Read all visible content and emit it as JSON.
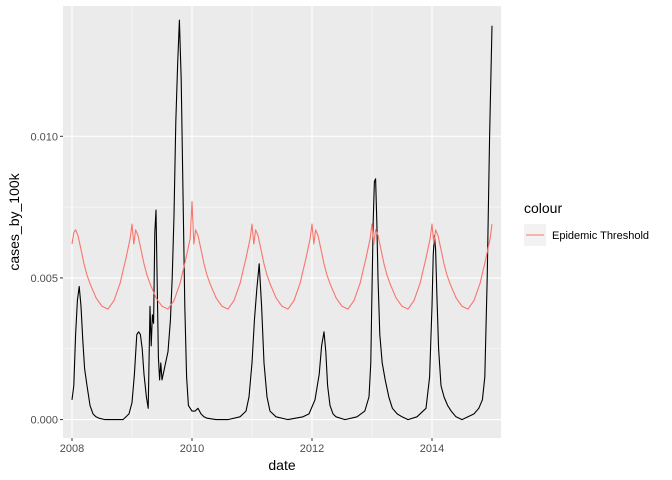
{
  "chart_data": {
    "type": "line",
    "xlabel": "date",
    "ylabel": "cases_by_100k",
    "xlim": [
      2007.85,
      2015.15
    ],
    "ylim": [
      -0.00065,
      0.0146
    ],
    "xticks": [
      2008,
      2010,
      2012,
      2014
    ],
    "xtick_labels": [
      "2008",
      "2010",
      "2012",
      "2014"
    ],
    "yticks": [
      0.0,
      0.005,
      0.01
    ],
    "ytick_labels": [
      "0.000",
      "0.005",
      "0.010"
    ],
    "grid": true,
    "legend": {
      "title": "colour",
      "position": "right",
      "entries": [
        {
          "label": "Epidemic Threshold",
          "color": "#F8766D"
        }
      ]
    },
    "colors": {
      "panel": "#EBEBEB",
      "grid_major": "#FFFFFF",
      "cases": "#000000",
      "threshold": "#F8766D"
    },
    "series": [
      {
        "key": "cases",
        "x": [
          2008.0,
          2008.03,
          2008.06,
          2008.09,
          2008.12,
          2008.15,
          2008.18,
          2008.21,
          2008.25,
          2008.3,
          2008.35,
          2008.4,
          2008.45,
          2008.55,
          2008.7,
          2008.85,
          2008.95,
          2009.0,
          2009.04,
          2009.08,
          2009.11,
          2009.14,
          2009.17,
          2009.2,
          2009.24,
          2009.27,
          2009.3,
          2009.32,
          2009.34,
          2009.36,
          2009.38,
          2009.4,
          2009.42,
          2009.44,
          2009.46,
          2009.48,
          2009.5,
          2009.53,
          2009.56,
          2009.6,
          2009.64,
          2009.67,
          2009.7,
          2009.73,
          2009.76,
          2009.79,
          2009.82,
          2009.85,
          2009.88,
          2009.91,
          2009.94,
          2009.97,
          2010.0,
          2010.05,
          2010.1,
          2010.15,
          2010.2,
          2010.25,
          2010.4,
          2010.6,
          2010.8,
          2010.9,
          2010.95,
          2011.0,
          2011.04,
          2011.08,
          2011.12,
          2011.16,
          2011.2,
          2011.25,
          2011.3,
          2011.4,
          2011.6,
          2011.85,
          2011.95,
          2012.05,
          2012.12,
          2012.16,
          2012.2,
          2012.23,
          2012.26,
          2012.3,
          2012.35,
          2012.4,
          2012.55,
          2012.75,
          2012.88,
          2012.95,
          2012.98,
          2013.0,
          2013.02,
          2013.04,
          2013.06,
          2013.08,
          2013.1,
          2013.13,
          2013.17,
          2013.22,
          2013.28,
          2013.34,
          2013.42,
          2013.5,
          2013.6,
          2013.75,
          2013.9,
          2013.96,
          2014.0,
          2014.02,
          2014.04,
          2014.06,
          2014.08,
          2014.11,
          2014.15,
          2014.2,
          2014.26,
          2014.32,
          2014.4,
          2014.5,
          2014.6,
          2014.7,
          2014.78,
          2014.84,
          2014.88,
          2014.92,
          2014.96,
          2015.0
        ],
        "y": [
          0.0007,
          0.0012,
          0.003,
          0.0042,
          0.0047,
          0.004,
          0.0028,
          0.0018,
          0.0012,
          0.0005,
          0.0002,
          0.0001,
          5e-05,
          0.0,
          0.0,
          0.0,
          0.0002,
          0.0006,
          0.0016,
          0.003,
          0.0031,
          0.003,
          0.0025,
          0.0016,
          0.0008,
          0.0004,
          0.004,
          0.0026,
          0.0037,
          0.0034,
          0.0066,
          0.0074,
          0.0048,
          0.0022,
          0.0014,
          0.002,
          0.0014,
          0.0017,
          0.002,
          0.0024,
          0.0035,
          0.005,
          0.0072,
          0.0105,
          0.0125,
          0.0141,
          0.012,
          0.008,
          0.004,
          0.0015,
          0.0005,
          0.0004,
          0.0003,
          0.0003,
          0.0004,
          0.0002,
          0.0001,
          5e-05,
          0.0,
          0.0,
          0.0001,
          0.0003,
          0.0008,
          0.002,
          0.0035,
          0.0046,
          0.0055,
          0.004,
          0.002,
          0.0008,
          0.0003,
          0.0001,
          0.0,
          0.0001,
          0.0002,
          0.0007,
          0.0016,
          0.0026,
          0.0031,
          0.0024,
          0.0012,
          0.0005,
          0.0002,
          0.0001,
          0.0,
          0.0001,
          0.0003,
          0.0008,
          0.002,
          0.0046,
          0.007,
          0.0084,
          0.0085,
          0.007,
          0.005,
          0.003,
          0.002,
          0.0014,
          0.0008,
          0.0004,
          0.0002,
          0.0001,
          0.0,
          0.0001,
          0.0004,
          0.0015,
          0.004,
          0.0058,
          0.0065,
          0.006,
          0.0045,
          0.0025,
          0.0012,
          0.0008,
          0.0005,
          0.0003,
          0.0001,
          0.0,
          0.0001,
          0.0002,
          0.0004,
          0.0007,
          0.0015,
          0.005,
          0.01,
          0.0139
        ]
      },
      {
        "key": "threshold",
        "name": "Epidemic Threshold",
        "x": [
          2008.0,
          2008.03,
          2008.06,
          2008.1,
          2008.15,
          2008.2,
          2008.25,
          2008.3,
          2008.4,
          2008.5,
          2008.6,
          2008.7,
          2008.8,
          2008.9,
          2008.97,
          2009.0,
          2009.03,
          2009.06,
          2009.1,
          2009.15,
          2009.2,
          2009.25,
          2009.3,
          2009.4,
          2009.5,
          2009.6,
          2009.7,
          2009.8,
          2009.9,
          2009.97,
          2010.0,
          2010.03,
          2010.06,
          2010.1,
          2010.15,
          2010.2,
          2010.25,
          2010.3,
          2010.4,
          2010.5,
          2010.6,
          2010.7,
          2010.8,
          2010.9,
          2010.97,
          2011.0,
          2011.03,
          2011.06,
          2011.1,
          2011.15,
          2011.2,
          2011.25,
          2011.3,
          2011.4,
          2011.5,
          2011.6,
          2011.7,
          2011.8,
          2011.9,
          2011.97,
          2012.0,
          2012.03,
          2012.06,
          2012.1,
          2012.15,
          2012.2,
          2012.25,
          2012.3,
          2012.4,
          2012.5,
          2012.6,
          2012.7,
          2012.8,
          2012.9,
          2012.97,
          2013.0,
          2013.03,
          2013.06,
          2013.1,
          2013.15,
          2013.2,
          2013.25,
          2013.3,
          2013.4,
          2013.5,
          2013.6,
          2013.7,
          2013.8,
          2013.9,
          2013.97,
          2014.0,
          2014.03,
          2014.06,
          2014.1,
          2014.15,
          2014.2,
          2014.25,
          2014.3,
          2014.4,
          2014.5,
          2014.6,
          2014.7,
          2014.8,
          2014.9,
          2014.97,
          2015.0
        ],
        "y": [
          0.0062,
          0.0066,
          0.0067,
          0.0065,
          0.006,
          0.0055,
          0.0051,
          0.0048,
          0.0043,
          0.004,
          0.0039,
          0.0042,
          0.0048,
          0.0057,
          0.0064,
          0.0069,
          0.0062,
          0.0067,
          0.0065,
          0.006,
          0.0055,
          0.0051,
          0.0048,
          0.0043,
          0.004,
          0.0039,
          0.0042,
          0.0048,
          0.0057,
          0.0064,
          0.0077,
          0.0062,
          0.0067,
          0.0065,
          0.006,
          0.0055,
          0.0051,
          0.0048,
          0.0043,
          0.004,
          0.0039,
          0.0042,
          0.0048,
          0.0057,
          0.0064,
          0.0069,
          0.0062,
          0.0067,
          0.0065,
          0.006,
          0.0055,
          0.0051,
          0.0048,
          0.0043,
          0.004,
          0.0039,
          0.0042,
          0.0048,
          0.0057,
          0.0064,
          0.0069,
          0.0062,
          0.0067,
          0.0065,
          0.006,
          0.0055,
          0.0051,
          0.0048,
          0.0043,
          0.004,
          0.0039,
          0.0042,
          0.0048,
          0.0057,
          0.0064,
          0.0069,
          0.0062,
          0.0067,
          0.0065,
          0.006,
          0.0055,
          0.0051,
          0.0048,
          0.0043,
          0.004,
          0.0039,
          0.0042,
          0.0048,
          0.0057,
          0.0064,
          0.0069,
          0.0062,
          0.0067,
          0.0065,
          0.006,
          0.0055,
          0.0051,
          0.0048,
          0.0043,
          0.004,
          0.0039,
          0.0042,
          0.0048,
          0.0057,
          0.0064,
          0.0069
        ]
      }
    ]
  }
}
